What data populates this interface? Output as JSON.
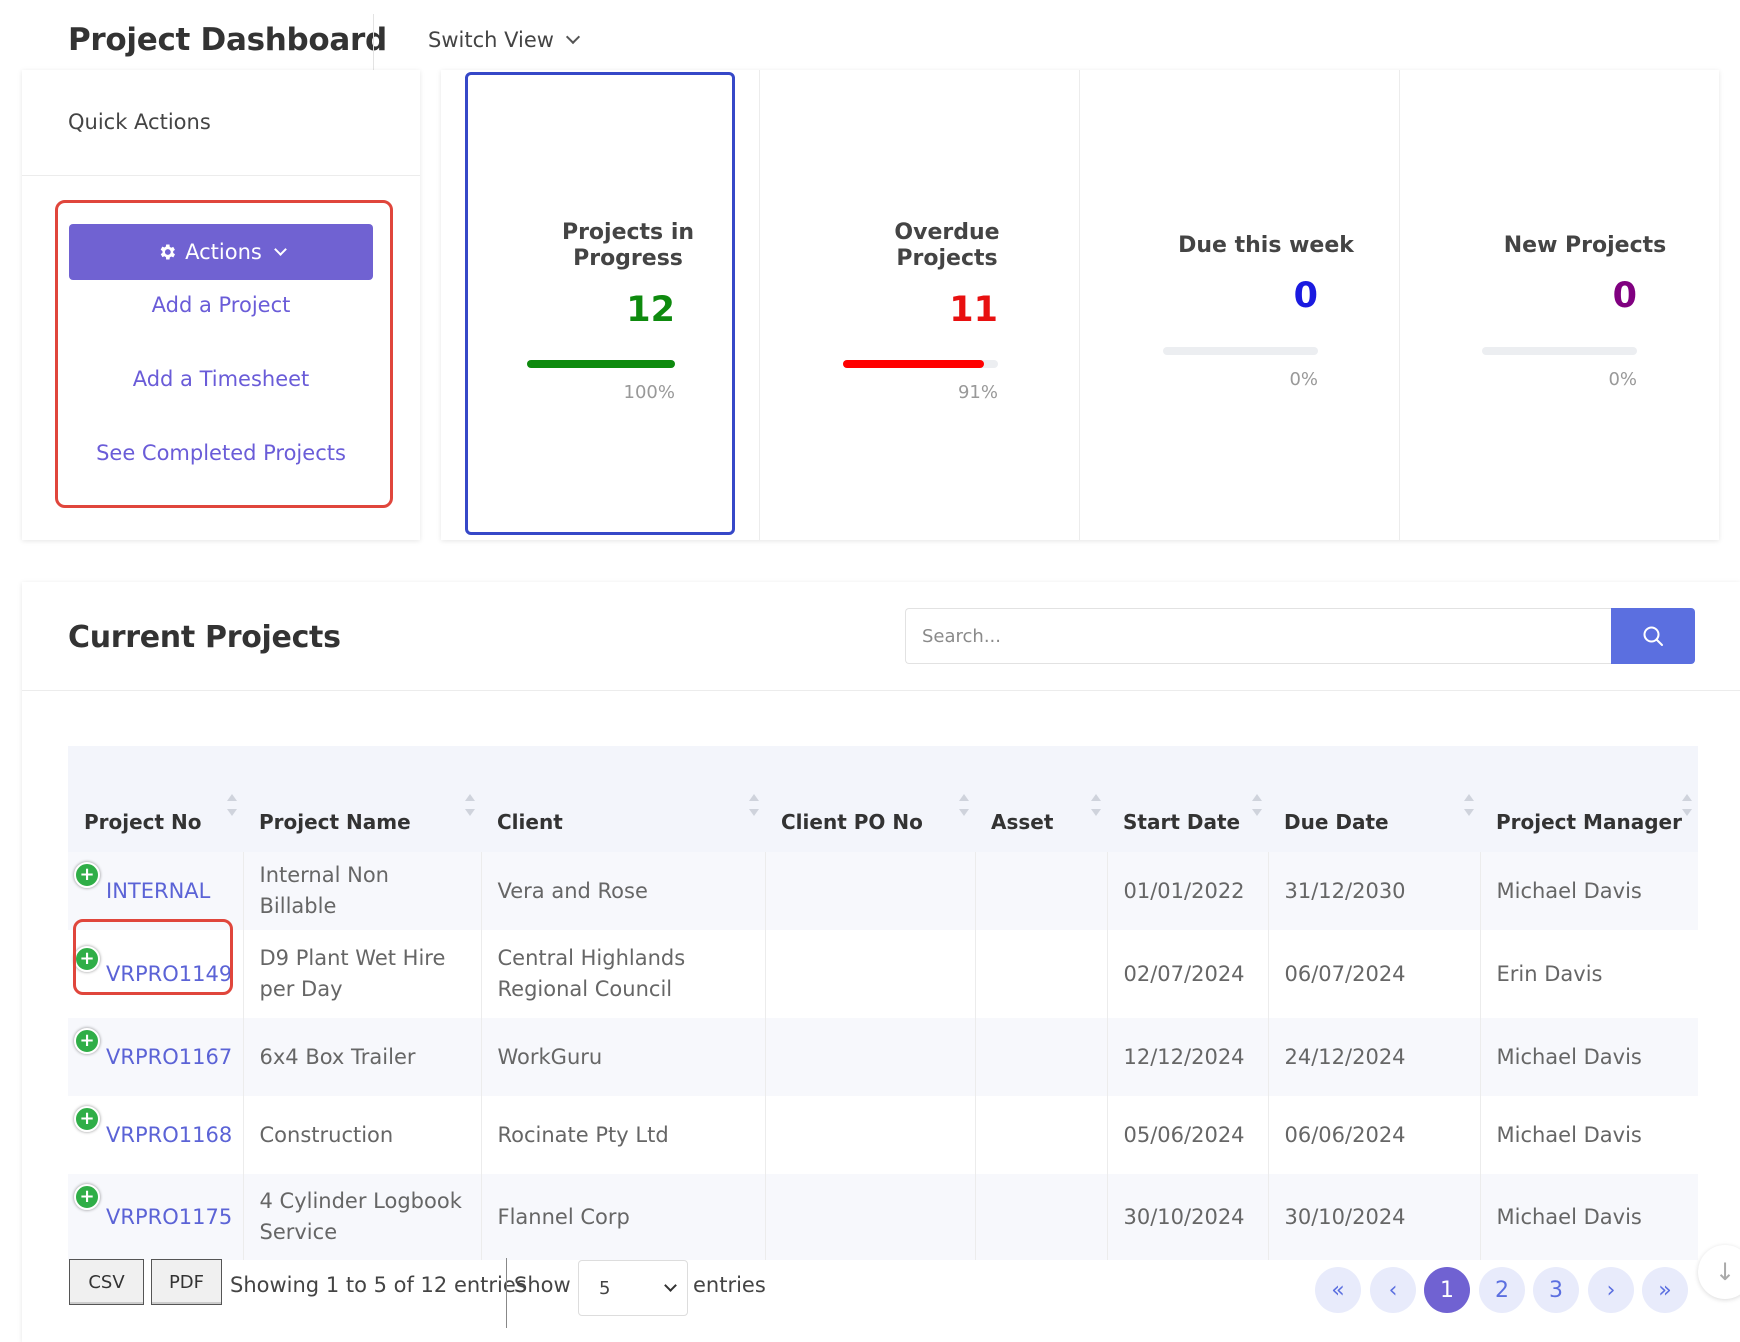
{
  "header": {
    "title": "Project Dashboard",
    "switch_view": "Switch View"
  },
  "quick_actions": {
    "title": "Quick Actions",
    "actions_label": "Actions",
    "links": [
      "Add a Project",
      "Add a Timesheet",
      "See Completed Projects"
    ]
  },
  "stats": [
    {
      "label": "Projects in Progress",
      "value": "12",
      "percent_label": "100%",
      "fill": 1.0,
      "color": "#0e8a0e",
      "bar_color": "#0e8a0e"
    },
    {
      "label": "Overdue Projects",
      "value": "11",
      "percent_label": "91%",
      "fill": 0.91,
      "color": "#e81010",
      "bar_color": "#ff0000"
    },
    {
      "label": "Due this week",
      "value": "0",
      "percent_label": "0%",
      "fill": 0,
      "color": "#1a1ae0",
      "bar_color": "#1a1ae0"
    },
    {
      "label": "New Projects",
      "value": "0",
      "percent_label": "0%",
      "fill": 0,
      "color": "#800080",
      "bar_color": "#800080"
    }
  ],
  "projects": {
    "title": "Current Projects",
    "search_placeholder": "Search...",
    "columns": [
      "Project No",
      "Project Name",
      "Client",
      "Client PO No",
      "Asset",
      "Start Date",
      "Due Date",
      "Project Manager"
    ],
    "rows": [
      {
        "no": "INTERNAL",
        "name": "Internal Non Billable",
        "client": "Vera and Rose",
        "po": "",
        "asset": "",
        "start": "01/01/2022",
        "due": "31/12/2030",
        "manager": "Michael Davis"
      },
      {
        "no": "VRPRO1149",
        "name": "D9 Plant Wet Hire per Day",
        "client": "Central Highlands Regional Council",
        "po": "",
        "asset": "",
        "start": "02/07/2024",
        "due": "06/07/2024",
        "manager": "Erin Davis"
      },
      {
        "no": "VRPRO1167",
        "name": "6x4 Box Trailer",
        "client": "WorkGuru",
        "po": "",
        "asset": "",
        "start": "12/12/2024",
        "due": "24/12/2024",
        "manager": "Michael Davis"
      },
      {
        "no": "VRPRO1168",
        "name": "Construction",
        "client": "Rocinate Pty Ltd",
        "po": "",
        "asset": "",
        "start": "05/06/2024",
        "due": "06/06/2024",
        "manager": "Michael Davis"
      },
      {
        "no": "VRPRO1175",
        "name": "4 Cylinder Logbook Service",
        "client": "Flannel Corp",
        "po": "",
        "asset": "",
        "start": "30/10/2024",
        "due": "30/10/2024",
        "manager": "Michael Davis"
      }
    ]
  },
  "footer": {
    "csv": "CSV",
    "pdf": "PDF",
    "showing": "Showing 1 to 5 of 12 entries",
    "show": "Show",
    "page_size": "5",
    "entries": "entries",
    "pages": [
      "«",
      "‹",
      "1",
      "2",
      "3",
      "›",
      "»"
    ],
    "current_page": "1"
  }
}
